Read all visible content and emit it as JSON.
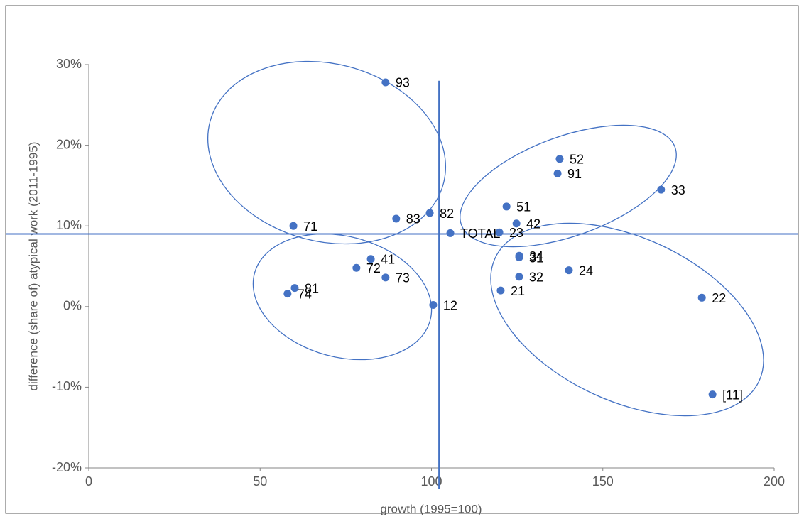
{
  "chart_data": {
    "type": "scatter",
    "x_label": "growth (1995=100)",
    "y_label": "difference (share of) atypical work (2011-1995)",
    "labels": [
      "93",
      "52",
      "91",
      "33",
      "51",
      "82",
      "83",
      "42",
      "71",
      "TOTAL",
      "23",
      "34",
      "31",
      "41",
      "72",
      "24",
      "73",
      "32",
      "81",
      "74",
      "21",
      "22",
      "12",
      "[11]"
    ],
    "x": [
      86.6,
      137.4,
      136.8,
      167.0,
      121.9,
      99.5,
      89.7,
      124.8,
      59.7,
      105.5,
      119.8,
      125.6,
      125.6,
      82.3,
      78.1,
      140.1,
      86.6,
      125.6,
      60.1,
      58.0,
      120.2,
      178.9,
      100.5,
      182.0
    ],
    "y": [
      27.8,
      18.3,
      16.5,
      14.5,
      12.4,
      11.6,
      10.9,
      10.3,
      10.0,
      9.1,
      9.2,
      6.3,
      6.1,
      5.9,
      4.8,
      4.5,
      3.6,
      3.7,
      2.3,
      1.6,
      2.0,
      1.1,
      0.2,
      -10.9
    ],
    "color": "#4472c4",
    "reference_lines": {
      "x": 102.2,
      "y": 9.0
    },
    "xlim": [
      0,
      200
    ],
    "xticks": [
      0,
      50,
      100,
      150,
      200
    ],
    "ylim": [
      -20,
      30
    ],
    "yticks": [
      {
        "value": -20,
        "label": "-20%"
      },
      {
        "value": -10,
        "label": "-10%"
      },
      {
        "value": 0,
        "label": "0%"
      },
      {
        "value": 10,
        "label": "10%"
      },
      {
        "value": 20,
        "label": "20%"
      },
      {
        "value": 30,
        "label": "30%"
      }
    ],
    "grid": false
  }
}
